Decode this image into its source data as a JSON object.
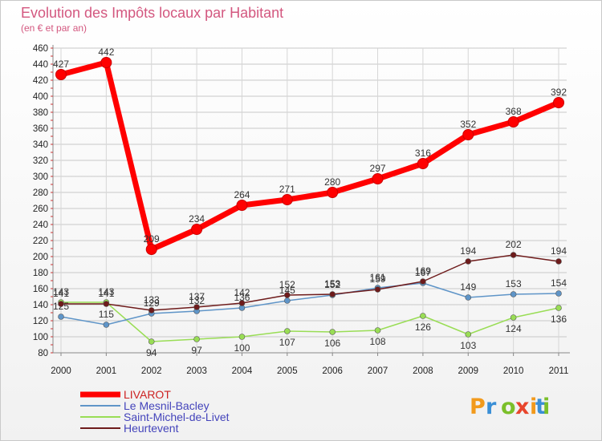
{
  "chart_data": {
    "type": "line",
    "title": "Evolution des Impôts locaux par Habitant",
    "subtitle": "(en € et par an)",
    "xlabel": "",
    "ylabel": "",
    "ylim": [
      80,
      460
    ],
    "y_ticks": [
      80,
      100,
      120,
      140,
      160,
      180,
      200,
      220,
      240,
      260,
      280,
      300,
      320,
      340,
      360,
      380,
      400,
      420,
      440,
      460
    ],
    "x": [
      "2000",
      "2001",
      "2002",
      "2003",
      "2004",
      "2005",
      "2006",
      "2007",
      "2008",
      "2009",
      "2010",
      "2011"
    ],
    "grid": true,
    "series": [
      {
        "name": "Saint-Michel-de-Livet",
        "color": "#99dd55",
        "values": [
          143,
          143,
          94,
          97,
          100,
          107,
          106,
          108,
          126,
          103,
          124,
          136
        ]
      },
      {
        "name": "Le Mesnil-Bacley",
        "color": "#5f95c8",
        "values": [
          125,
          115,
          129,
          132,
          136,
          145,
          152,
          161,
          167,
          149,
          153,
          154
        ]
      },
      {
        "name": "Heurtevent",
        "color": "#6e1b1b",
        "values": [
          141,
          141,
          133,
          137,
          142,
          152,
          153,
          159,
          169,
          194,
          202,
          194
        ]
      },
      {
        "name": "LIVAROT",
        "color": "#ff0000",
        "values": [
          427,
          442,
          209,
          234,
          264,
          271,
          280,
          297,
          316,
          352,
          368,
          392
        ]
      }
    ],
    "legend": [
      "LIVAROT",
      "Le Mesnil-Bacley",
      "Saint-Michel-de-Livet",
      "Heurtevent"
    ],
    "legend_position": "bottom-left"
  },
  "branding": {
    "letters": [
      "P",
      "r",
      "o",
      "x",
      "i",
      "t",
      "i"
    ],
    "colors": [
      "#f29a1c",
      "#3a8fd6",
      "#7bbf2a",
      "#e8452c",
      "#f29a1c",
      "#3a8fd6",
      "#7bbf2a"
    ]
  }
}
